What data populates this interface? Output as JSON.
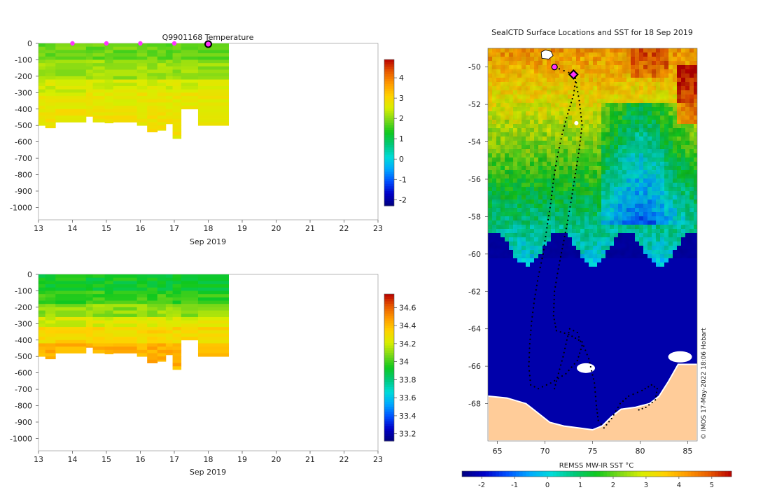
{
  "colors": {
    "sst_ramp": [
      "#000080",
      "#0000c8",
      "#0050ff",
      "#00a8ff",
      "#00dcd8",
      "#00c87a",
      "#10c81e",
      "#7ad818",
      "#d8ee00",
      "#ffd200",
      "#ff9a00",
      "#e85a00",
      "#b80000"
    ],
    "ocean_cold": "#000a8c",
    "land": "#ffcc99",
    "ice": "#ffffff",
    "marker": "#ff33ff",
    "track": "#000000"
  },
  "chart_data": [
    {
      "type": "heatmap",
      "title": "Q9901168  Temperature",
      "xlabel": "Sep 2019",
      "ylabel": "",
      "xlim": [
        13,
        23
      ],
      "ylim": [
        -1075,
        0
      ],
      "x_ticks": [
        "13",
        "14",
        "15",
        "16",
        "17",
        "18",
        "19",
        "20",
        "21",
        "22",
        "23"
      ],
      "y_ticks": [
        "0",
        "-100",
        "-200",
        "-300",
        "-400",
        "-500",
        "-600",
        "-700",
        "-800",
        "-900",
        "-1000"
      ],
      "colorbar": {
        "min": -2.3,
        "max": 4.9,
        "ticks": [
          "-2",
          "-1",
          "0",
          "1",
          "2",
          "3",
          "4"
        ],
        "tick_values": [
          -2,
          -1,
          0,
          1,
          2,
          3,
          4
        ]
      },
      "profile_markers_day": [
        14,
        15,
        16,
        17,
        18
      ],
      "current_day": 18,
      "profiles": [
        {
          "x0": 13.0,
          "x1": 13.2,
          "max_depth": 500
        },
        {
          "x0": 13.2,
          "x1": 13.5,
          "max_depth": 515
        },
        {
          "x0": 13.5,
          "x1": 14.4,
          "max_depth": 480
        },
        {
          "x0": 14.4,
          "x1": 14.6,
          "max_depth": 445
        },
        {
          "x0": 14.6,
          "x1": 14.95,
          "max_depth": 480
        },
        {
          "x0": 14.95,
          "x1": 15.2,
          "max_depth": 485
        },
        {
          "x0": 15.2,
          "x1": 15.9,
          "max_depth": 480
        },
        {
          "x0": 15.9,
          "x1": 16.2,
          "max_depth": 500
        },
        {
          "x0": 16.2,
          "x1": 16.5,
          "max_depth": 540
        },
        {
          "x0": 16.5,
          "x1": 16.75,
          "max_depth": 530
        },
        {
          "x0": 16.75,
          "x1": 16.95,
          "max_depth": 490
        },
        {
          "x0": 16.95,
          "x1": 17.2,
          "max_depth": 580
        },
        {
          "x0": 17.2,
          "x1": 17.7,
          "max_depth": 400
        },
        {
          "x0": 17.7,
          "x1": 18.6,
          "max_depth": 500
        }
      ],
      "temp_layers": [
        {
          "depth": 100,
          "value": 1.8
        },
        {
          "depth": 220,
          "value": 2.1
        },
        {
          "depth": 300,
          "value": 2.5
        },
        {
          "depth": 400,
          "value": 2.7
        },
        {
          "depth": 600,
          "value": 2.8
        }
      ]
    },
    {
      "type": "heatmap",
      "title": "",
      "xlabel": "Sep 2019",
      "ylabel": "",
      "xlim": [
        13,
        23
      ],
      "ylim": [
        -1075,
        0
      ],
      "x_ticks": [
        "13",
        "14",
        "15",
        "16",
        "17",
        "18",
        "19",
        "20",
        "21",
        "22",
        "23"
      ],
      "y_ticks": [
        "0",
        "-100",
        "-200",
        "-300",
        "-400",
        "-500",
        "-600",
        "-700",
        "-800",
        "-900",
        "-1000"
      ],
      "colorbar": {
        "min": 33.12,
        "max": 34.75,
        "ticks": [
          "33.2",
          "33.4",
          "33.6",
          "33.8",
          "34",
          "34.2",
          "34.4",
          "34.6"
        ],
        "tick_values": [
          33.2,
          33.4,
          33.6,
          33.8,
          34.0,
          34.2,
          34.4,
          34.6
        ]
      },
      "salinity_layers": [
        {
          "depth": 90,
          "value": 33.92
        },
        {
          "depth": 180,
          "value": 33.98
        },
        {
          "depth": 260,
          "value": 34.1
        },
        {
          "depth": 320,
          "value": 34.22
        },
        {
          "depth": 420,
          "value": 34.32
        },
        {
          "depth": 600,
          "value": 34.42
        }
      ]
    },
    {
      "type": "heatmap",
      "title": "SealCTD Surface Locations and SST for 18 Sep 2019",
      "xlabel": "",
      "ylabel": "",
      "xlim": [
        64,
        86
      ],
      "ylim": [
        -70,
        -49
      ],
      "x_ticks": [
        "65",
        "70",
        "75",
        "80",
        "85"
      ],
      "y_ticks": [
        "-50",
        "-52",
        "-54",
        "-56",
        "-58",
        "-60",
        "-62",
        "-64",
        "-66",
        "-68"
      ],
      "colorbar": {
        "label": "REMSS MW-IR SST °C",
        "min": -2.6,
        "max": 5.6,
        "ticks": [
          "-2",
          "-1",
          "0",
          "1",
          "2",
          "3",
          "4",
          "5"
        ],
        "tick_values": [
          -2,
          -1,
          0,
          1,
          2,
          3,
          4,
          5
        ]
      },
      "credit": "© IMOS 17-May-2022 18:06 Hobart",
      "deployment_point": {
        "lon": 71.0,
        "lat": -50.0
      },
      "latest_point": {
        "lon": 73.0,
        "lat": -50.4
      },
      "track": [
        [
          71.0,
          -50.0
        ],
        [
          72.0,
          -50.2
        ],
        [
          73.0,
          -50.4
        ],
        [
          73.2,
          -50.8
        ],
        [
          73.0,
          -51.5
        ],
        [
          72.4,
          -52.5
        ],
        [
          71.8,
          -53.6
        ],
        [
          71.3,
          -54.8
        ],
        [
          70.9,
          -56.0
        ],
        [
          70.6,
          -57.3
        ],
        [
          70.2,
          -58.6
        ],
        [
          69.8,
          -60.0
        ],
        [
          69.3,
          -61.2
        ],
        [
          68.9,
          -62.4
        ],
        [
          68.6,
          -63.6
        ],
        [
          68.4,
          -64.8
        ],
        [
          68.3,
          -66.0
        ],
        [
          68.5,
          -67.0
        ],
        [
          69.3,
          -67.2
        ],
        [
          70.6,
          -66.9
        ],
        [
          72.2,
          -66.4
        ],
        [
          73.4,
          -65.7
        ],
        [
          73.9,
          -64.9
        ],
        [
          73.4,
          -64.2
        ],
        [
          72.6,
          -64.0
        ],
        [
          72.3,
          -64.6
        ],
        [
          71.9,
          -65.5
        ],
        [
          71.3,
          -66.6
        ],
        [
          70.9,
          -67.4
        ]
      ],
      "track2": [
        [
          73.2,
          -50.6
        ],
        [
          73.6,
          -51.8
        ],
        [
          73.9,
          -53.1
        ],
        [
          73.6,
          -54.4
        ],
        [
          73.2,
          -55.7
        ],
        [
          72.8,
          -57.0
        ],
        [
          72.4,
          -58.2
        ],
        [
          71.9,
          -59.5
        ],
        [
          71.4,
          -60.8
        ],
        [
          71.0,
          -62.0
        ],
        [
          70.9,
          -63.3
        ],
        [
          71.2,
          -64.1
        ],
        [
          72.5,
          -64.3
        ],
        [
          73.9,
          -64.7
        ],
        [
          74.6,
          -65.6
        ],
        [
          75.2,
          -66.9
        ],
        [
          75.4,
          -68.1
        ],
        [
          75.6,
          -68.9
        ],
        [
          76.2,
          -69.3
        ],
        [
          77.0,
          -68.8
        ],
        [
          77.9,
          -68.0
        ],
        [
          78.8,
          -67.6
        ],
        [
          80.2,
          -67.3
        ],
        [
          81.2,
          -67.0
        ],
        [
          81.8,
          -67.2
        ],
        [
          81.6,
          -67.8
        ],
        [
          80.6,
          -68.2
        ],
        [
          79.5,
          -68.4
        ]
      ]
    }
  ]
}
